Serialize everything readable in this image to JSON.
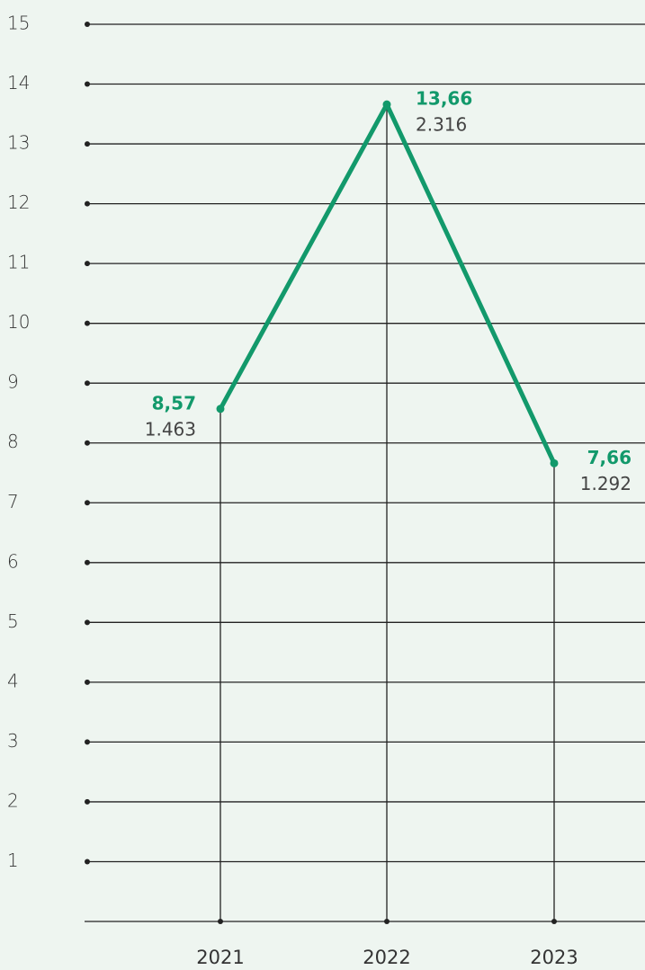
{
  "chart_data": {
    "type": "line",
    "categories": [
      "2021",
      "2022",
      "2023"
    ],
    "series": [
      {
        "color": "#12996b",
        "values": [
          8.57,
          13.66,
          7.66
        ],
        "value_labels": [
          "8,57",
          "13,66",
          "7,66"
        ],
        "annotations": [
          "1.463",
          "2.316",
          "1.292"
        ]
      }
    ],
    "ylim": [
      0,
      15
    ],
    "yticks": [
      1,
      2,
      3,
      4,
      5,
      6,
      7,
      8,
      9,
      10,
      11,
      12,
      13,
      14,
      15
    ],
    "grid": true
  }
}
